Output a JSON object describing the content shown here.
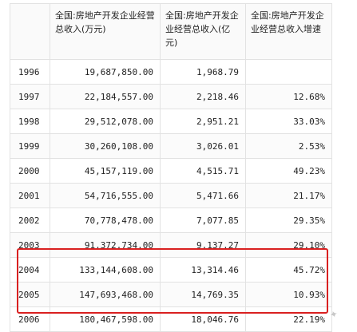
{
  "table": {
    "headers": [
      "",
      "全国:房地产开发企业经营总收入(万元)",
      "全国:房地产开发企业经营总收入(亿元)",
      "全国:房地产开发企业经营总收入增速"
    ],
    "rows": [
      [
        "1996",
        "19,687,850.00",
        "1,968.79",
        ""
      ],
      [
        "1997",
        "22,184,557.00",
        "2,218.46",
        "12.68%"
      ],
      [
        "1998",
        "29,512,078.00",
        "2,951.21",
        "33.03%"
      ],
      [
        "1999",
        "30,260,108.00",
        "3,026.01",
        "2.53%"
      ],
      [
        "2000",
        "45,157,119.00",
        "4,515.71",
        "49.23%"
      ],
      [
        "2001",
        "54,716,555.00",
        "5,471.66",
        "21.17%"
      ],
      [
        "2002",
        "70,778,478.00",
        "7,077.85",
        "29.35%"
      ],
      [
        "2003",
        "91,372,734.00",
        "9,137.27",
        "29.10%"
      ],
      [
        "2004",
        "133,144,608.00",
        "13,314.46",
        "45.72%"
      ],
      [
        "2005",
        "147,693,468.00",
        "14,769.35",
        "10.93%"
      ],
      [
        "2006",
        "180,467,598.00",
        "18,046.76",
        "22.19%"
      ]
    ]
  },
  "highlight": {
    "color": "#d92020"
  }
}
